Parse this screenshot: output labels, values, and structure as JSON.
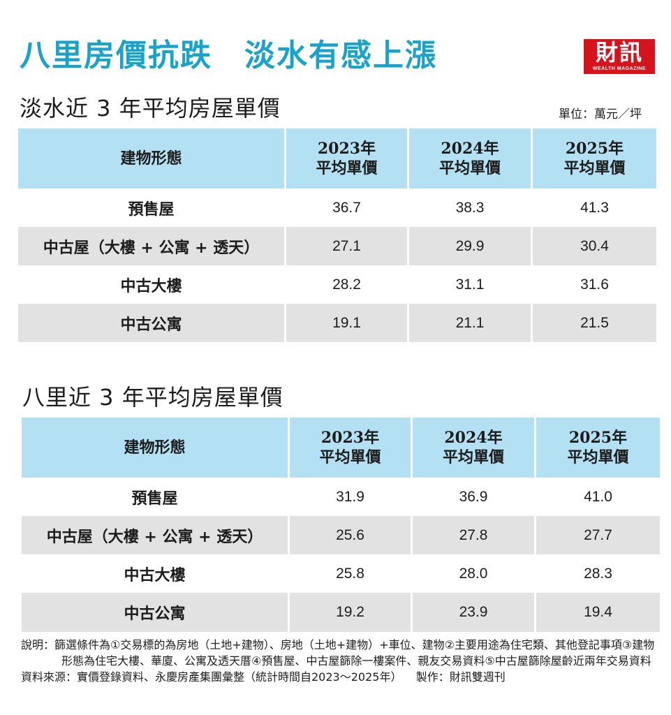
{
  "headline": "八里房價抗跌　淡水有感上漲",
  "colors": {
    "headline": "#1aa3c9",
    "header_fill": "#b3e0f2",
    "row_shade": "#e2e2e2",
    "logo_red": "#d6141d"
  },
  "logo": {
    "main": "財訊",
    "sub": "WEALTH MAGAZINE"
  },
  "unit_label": "單位：萬元／坪",
  "chart_data": [
    {
      "type": "table",
      "title": "淡水近 3 年平均房屋單價",
      "columns": [
        "建物形態",
        "2023年\n平均單價",
        "2024年\n平均單價",
        "2025年\n平均單價"
      ],
      "header": {
        "c0": "建物形態",
        "c1": [
          "2023年",
          "平均單價"
        ],
        "c2": [
          "2024年",
          "平均單價"
        ],
        "c3": [
          "2025年",
          "平均單價"
        ]
      },
      "rows": [
        {
          "label": "預售屋",
          "values": [
            "36.7",
            "38.3",
            "41.3"
          ]
        },
        {
          "label": "中古屋（大樓 + 公寓 + 透天）",
          "values": [
            "27.1",
            "29.9",
            "30.4"
          ]
        },
        {
          "label": "中古大樓",
          "values": [
            "28.2",
            "31.1",
            "31.6"
          ]
        },
        {
          "label": "中古公寓",
          "values": [
            "19.1",
            "21.1",
            "21.5"
          ]
        }
      ]
    },
    {
      "type": "table",
      "title": "八里近 3 年平均房屋單價",
      "columns": [
        "建物形態",
        "2023年\n平均單價",
        "2024年\n平均單價",
        "2025年\n平均單價"
      ],
      "header": {
        "c0": "建物形態",
        "c1": [
          "2023年",
          "平均單價"
        ],
        "c2": [
          "2024年",
          "平均單價"
        ],
        "c3": [
          "2025年",
          "平均單價"
        ]
      },
      "rows": [
        {
          "label": "預售屋",
          "values": [
            "31.9",
            "36.9",
            "41.0"
          ]
        },
        {
          "label": "中古屋（大樓 + 公寓 + 透天）",
          "values": [
            "25.6",
            "27.8",
            "27.7"
          ]
        },
        {
          "label": "中古大樓",
          "values": [
            "25.8",
            "28.0",
            "28.3"
          ]
        },
        {
          "label": "中古公寓",
          "values": [
            "19.2",
            "23.9",
            "19.4"
          ]
        }
      ]
    }
  ],
  "notes": {
    "explanation": "說明：篩選條件為①交易標的為房地（土地+建物）、房地（土地+建物）+車位、建物②主要用途為住宅類、其他登記事項③建物形態為住宅大樓、華廈、公寓及透天厝④預售屋、中古屋篩除一樓案件、親友交易資料⑤中古屋篩除屋齡近兩年交易資料",
    "source": "資料來源：實價登錄資料、永慶房產集團彙整（統計時間自2023～2025年）",
    "credit": "製作：財訊雙週刊"
  }
}
